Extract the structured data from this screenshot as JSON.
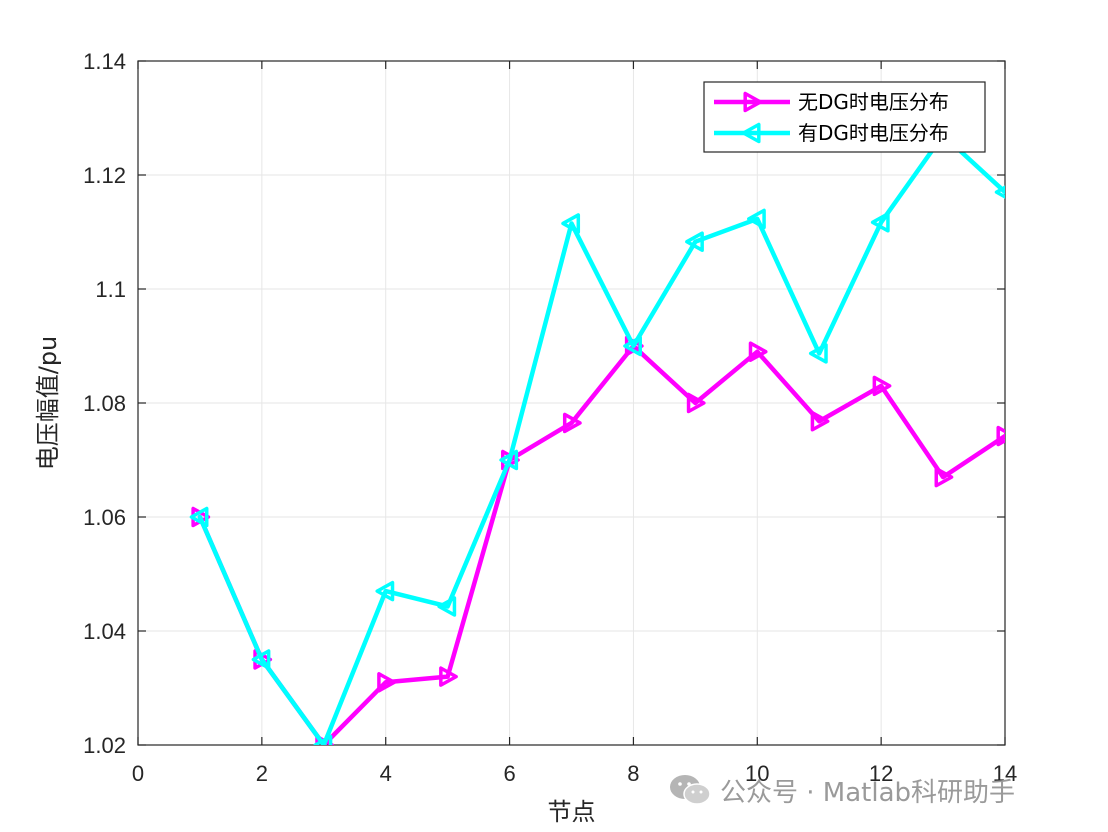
{
  "chart_data": {
    "type": "line",
    "xlabel": "节点",
    "ylabel": "电压幅值/pu",
    "xlim": [
      0,
      14
    ],
    "ylim": [
      1.02,
      1.14
    ],
    "xticks": [
      "0",
      "2",
      "4",
      "6",
      "8",
      "10",
      "12",
      "14"
    ],
    "yticks": [
      "1.02",
      "1.04",
      "1.06",
      "1.08",
      "1.1",
      "1.12",
      "1.14"
    ],
    "grid": true,
    "legend_position": "top-right",
    "x": [
      1,
      2,
      3,
      4,
      5,
      6,
      7,
      8,
      9,
      10,
      11,
      12,
      13,
      14
    ],
    "series": [
      {
        "name": "无DG时电压分布",
        "color": "#ff00ff",
        "marker": "triangle-right",
        "values": [
          1.06,
          1.035,
          1.02,
          1.031,
          1.032,
          1.07,
          1.0765,
          1.09,
          1.08,
          1.089,
          1.0768,
          1.083,
          1.067,
          1.0742
        ]
      },
      {
        "name": "有DG时电压分布",
        "color": "#00ffff",
        "marker": "triangle-left",
        "values": [
          1.06,
          1.035,
          1.02,
          1.047,
          1.0443,
          1.07,
          1.1115,
          1.09,
          1.1083,
          1.1123,
          1.0887,
          1.1117,
          1.127,
          1.117
        ]
      }
    ]
  },
  "watermark": {
    "text": "公众号 · Matlab科研助手",
    "icon": "wechat-icon"
  }
}
